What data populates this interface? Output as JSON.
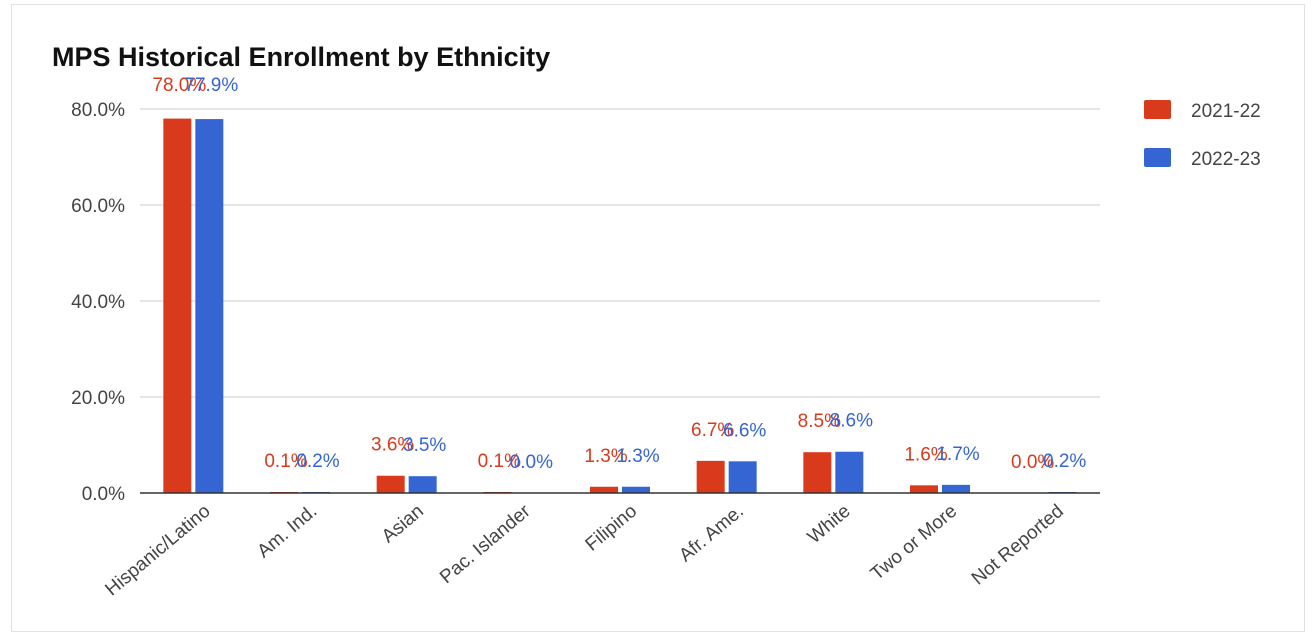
{
  "chart_data": {
    "type": "bar",
    "title": "MPS Historical Enrollment by Ethnicity",
    "categories": [
      "Hispanic/Latino",
      "Am. Ind.",
      "Asian",
      "Pac. Islander",
      "Filipino",
      "Afr. Ame.",
      "White",
      "Two or More",
      "Not Reported"
    ],
    "series": [
      {
        "name": "2021-22",
        "color": "#d83a1b",
        "values": [
          78.0,
          0.1,
          3.6,
          0.1,
          1.3,
          6.7,
          8.5,
          1.6,
          0.0
        ],
        "labels": [
          "78.0%",
          "0.1%",
          "3.6%",
          "0.1%",
          "1.3%",
          "6.7%",
          "8.5%",
          "1.6%",
          "0.0%"
        ]
      },
      {
        "name": "2022-23",
        "color": "#3465d2",
        "values": [
          77.9,
          0.2,
          3.5,
          0.0,
          1.3,
          6.6,
          8.6,
          1.7,
          0.2
        ],
        "labels": [
          "77.9%",
          "0.2%",
          "3.5%",
          "0.0%",
          "1.3%",
          "6.6%",
          "8.6%",
          "1.7%",
          "0.2%"
        ]
      }
    ],
    "y_ticks": [
      "0.0%",
      "20.0%",
      "40.0%",
      "60.0%",
      "80.0%"
    ],
    "y_tick_values": [
      0,
      20,
      40,
      60,
      80
    ],
    "ylim": [
      0,
      80
    ],
    "grid": true,
    "legend_position": "right"
  }
}
